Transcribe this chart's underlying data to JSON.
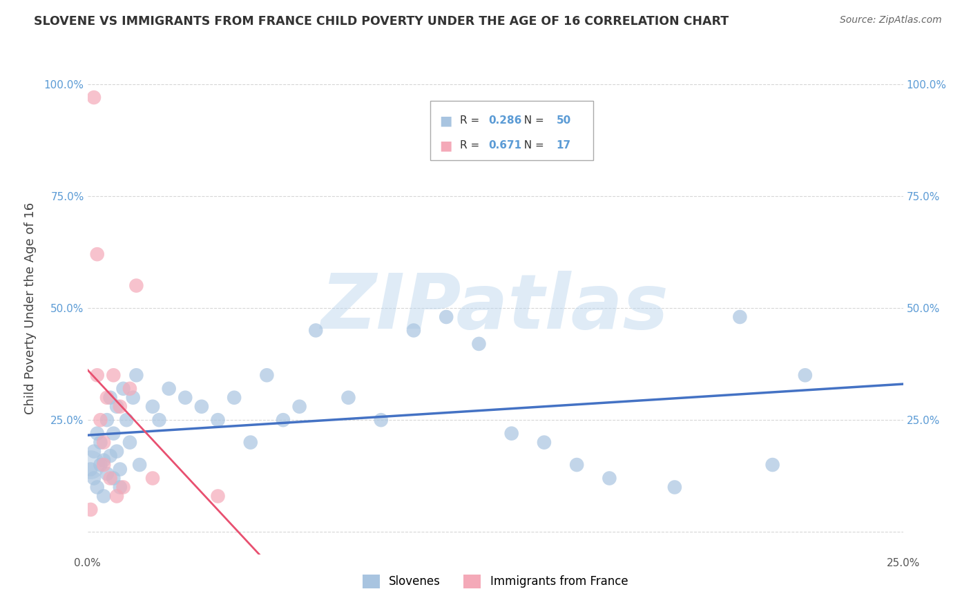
{
  "title": "SLOVENE VS IMMIGRANTS FROM FRANCE CHILD POVERTY UNDER THE AGE OF 16 CORRELATION CHART",
  "source": "Source: ZipAtlas.com",
  "ylabel": "Child Poverty Under the Age of 16",
  "xlim": [
    0.0,
    0.25
  ],
  "ylim": [
    -0.05,
    1.05
  ],
  "xticks": [
    0.0,
    0.05,
    0.1,
    0.15,
    0.2,
    0.25
  ],
  "xtick_labels": [
    "0.0%",
    "",
    "",
    "",
    "",
    "25.0%"
  ],
  "yticks": [
    0.0,
    0.25,
    0.5,
    0.75,
    1.0
  ],
  "ytick_labels_left": [
    "",
    "25.0%",
    "50.0%",
    "75.0%",
    "100.0%"
  ],
  "ytick_labels_right": [
    "",
    "25.0%",
    "50.0%",
    "75.0%",
    "100.0%"
  ],
  "watermark": "ZIPatlas",
  "slovene_color": "#a8c4e0",
  "france_color": "#f4a9b8",
  "slovene_line_color": "#4472c4",
  "france_line_color": "#e85070",
  "background_color": "#ffffff",
  "grid_color": "#cccccc",
  "slovene_r": "0.286",
  "slovene_n": "50",
  "france_r": "0.671",
  "france_n": "17",
  "slovene_x": [
    0.001,
    0.002,
    0.002,
    0.003,
    0.003,
    0.004,
    0.004,
    0.005,
    0.005,
    0.006,
    0.006,
    0.007,
    0.007,
    0.008,
    0.008,
    0.009,
    0.009,
    0.01,
    0.01,
    0.011,
    0.012,
    0.013,
    0.014,
    0.015,
    0.016,
    0.02,
    0.022,
    0.025,
    0.03,
    0.035,
    0.04,
    0.045,
    0.05,
    0.055,
    0.06,
    0.065,
    0.07,
    0.08,
    0.09,
    0.1,
    0.11,
    0.12,
    0.13,
    0.14,
    0.15,
    0.16,
    0.18,
    0.2,
    0.21,
    0.22
  ],
  "slovene_y": [
    0.14,
    0.12,
    0.18,
    0.1,
    0.22,
    0.15,
    0.2,
    0.16,
    0.08,
    0.25,
    0.13,
    0.3,
    0.17,
    0.12,
    0.22,
    0.18,
    0.28,
    0.14,
    0.1,
    0.32,
    0.25,
    0.2,
    0.3,
    0.35,
    0.15,
    0.28,
    0.25,
    0.32,
    0.3,
    0.28,
    0.25,
    0.3,
    0.2,
    0.35,
    0.25,
    0.28,
    0.45,
    0.3,
    0.25,
    0.45,
    0.48,
    0.42,
    0.22,
    0.2,
    0.15,
    0.12,
    0.1,
    0.48,
    0.15,
    0.35
  ],
  "france_x": [
    0.001,
    0.002,
    0.003,
    0.003,
    0.004,
    0.005,
    0.005,
    0.006,
    0.007,
    0.008,
    0.009,
    0.01,
    0.011,
    0.013,
    0.015,
    0.02,
    0.04
  ],
  "france_y": [
    0.05,
    0.97,
    0.35,
    0.62,
    0.25,
    0.15,
    0.2,
    0.3,
    0.12,
    0.35,
    0.08,
    0.28,
    0.1,
    0.32,
    0.55,
    0.12,
    0.08
  ]
}
